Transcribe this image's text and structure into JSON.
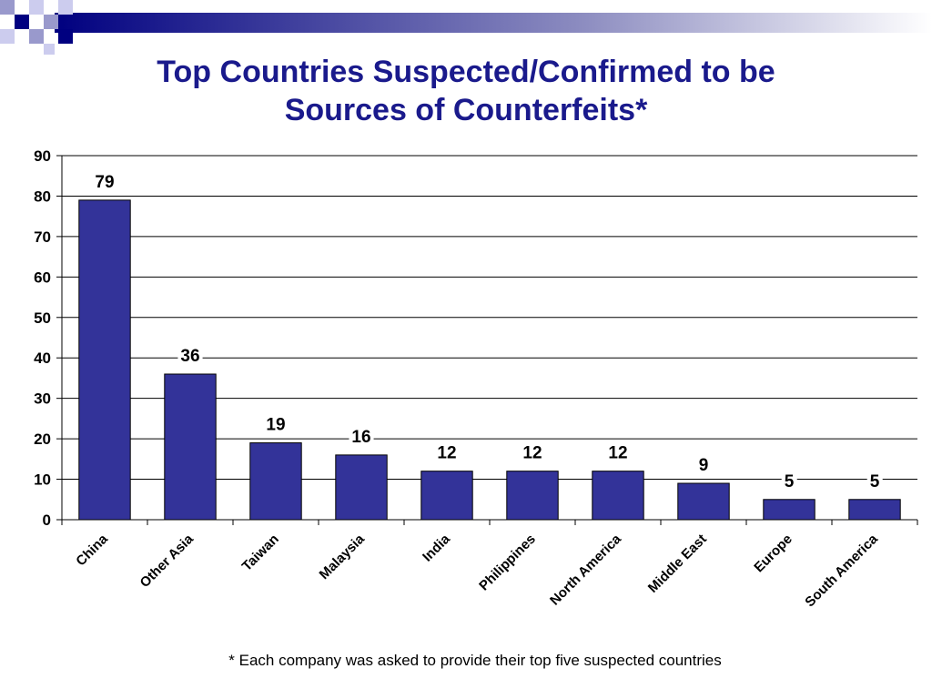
{
  "slide": {
    "title_line1": "Top Countries Suspected/Confirmed to be",
    "title_line2": "Sources of Counterfeits*",
    "footnote": "* Each company was asked to provide their top five suspected countries"
  },
  "colors": {
    "title": "#1a1a8c",
    "bar": "#333399",
    "deco_dark": "#000080",
    "deco_light": "#9999cc"
  },
  "chart_data": {
    "type": "bar",
    "title": "",
    "xlabel": "",
    "ylabel": "",
    "categories": [
      "China",
      "Other Asia",
      "Taiwan",
      "Malaysia",
      "India",
      "Philippines",
      "North America",
      "Middle East",
      "Europe",
      "South America"
    ],
    "values": [
      79,
      36,
      19,
      16,
      12,
      12,
      12,
      9,
      5,
      5
    ],
    "ylim": [
      0,
      90
    ],
    "yticks": [
      0,
      10,
      20,
      30,
      40,
      50,
      60,
      70,
      80,
      90
    ],
    "grid": true,
    "legend": "none",
    "data_labels": true
  }
}
